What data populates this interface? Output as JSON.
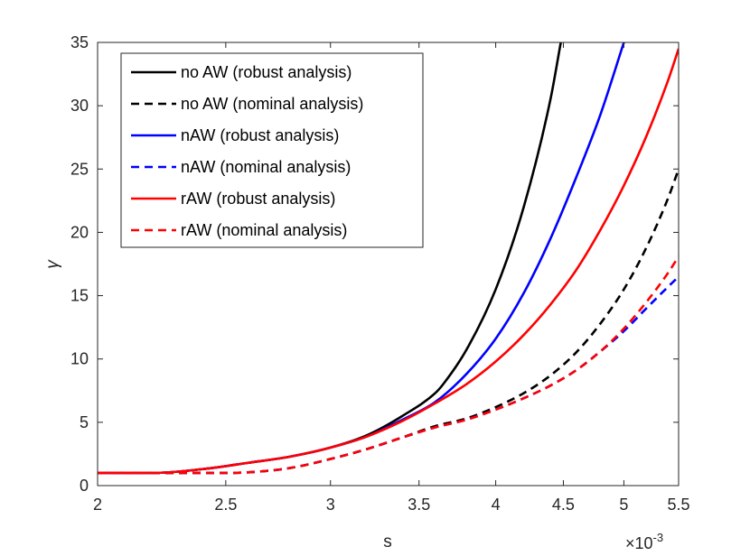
{
  "chart_data": {
    "type": "line",
    "title": "",
    "xlabel": "s",
    "ylabel": "γ",
    "x_scale": "log",
    "x_multiplier_label": "×10",
    "x_multiplier_exponent": "-3",
    "xlim": [
      2,
      5.5
    ],
    "ylim": [
      0,
      35
    ],
    "xticks": [
      2,
      2.5,
      3,
      3.5,
      4,
      4.5,
      5,
      5.5
    ],
    "xtick_labels": [
      "2",
      "2.5",
      "3",
      "3.5",
      "4",
      "4.5",
      "5",
      "5.5"
    ],
    "yticks": [
      0,
      5,
      10,
      15,
      20,
      25,
      30,
      35
    ],
    "ytick_labels": [
      "0",
      "5",
      "10",
      "15",
      "20",
      "25",
      "30",
      "35"
    ],
    "grid": false,
    "legend_position": "top-left",
    "series": [
      {
        "name": "no AW (robust analysis)",
        "color": "#000000",
        "style": "solid",
        "x": [
          2,
          2.2,
          2.4,
          2.6,
          2.8,
          3,
          3.2,
          3.4,
          3.6,
          3.65,
          3.8,
          4,
          4.2,
          4.4,
          4.48
        ],
        "y": [
          1,
          1,
          1.3,
          1.8,
          2.3,
          3,
          4,
          5.5,
          7.3,
          8,
          10.7,
          15.5,
          22,
          30.5,
          35
        ]
      },
      {
        "name": "no AW (nominal analysis)",
        "color": "#000000",
        "style": "dashed",
        "x": [
          2,
          2.2,
          2.4,
          2.6,
          2.8,
          3,
          3.2,
          3.4,
          3.6,
          3.8,
          4,
          4.2,
          4.4,
          4.6,
          4.8,
          5,
          5.2,
          5.4,
          5.5
        ],
        "y": [
          1,
          1,
          1,
          1.05,
          1.4,
          2.1,
          2.9,
          3.8,
          4.7,
          5.3,
          6.2,
          7.3,
          8.7,
          10.5,
          12.8,
          15.5,
          18.8,
          22.7,
          25
        ]
      },
      {
        "name": "nAW (robust analysis)",
        "color": "#0000ff",
        "style": "solid",
        "x": [
          2,
          2.2,
          2.4,
          2.6,
          2.8,
          3,
          3.2,
          3.4,
          3.6,
          3.8,
          4,
          4.2,
          4.4,
          4.6,
          4.8,
          5
        ],
        "y": [
          1,
          1,
          1.3,
          1.8,
          2.3,
          3,
          3.9,
          5.2,
          6.6,
          8.8,
          11.6,
          15.2,
          19.5,
          24.3,
          29.3,
          35
        ]
      },
      {
        "name": "nAW (nominal analysis)",
        "color": "#0000ff",
        "style": "dashed",
        "x": [
          2,
          2.2,
          2.4,
          2.6,
          2.8,
          3,
          3.2,
          3.4,
          3.6,
          3.8,
          4,
          4.2,
          4.4,
          4.6,
          4.8,
          5,
          5.2,
          5.4,
          5.5
        ],
        "y": [
          1,
          1,
          1,
          1.05,
          1.4,
          2.1,
          2.9,
          3.8,
          4.6,
          5.2,
          6,
          6.9,
          7.9,
          9.1,
          10.6,
          12.2,
          14,
          15.7,
          16.5
        ]
      },
      {
        "name": "rAW (robust analysis)",
        "color": "#ff0000",
        "style": "solid",
        "x": [
          2,
          2.2,
          2.4,
          2.6,
          2.8,
          3,
          3.2,
          3.4,
          3.6,
          3.8,
          4,
          4.2,
          4.4,
          4.6,
          4.8,
          5,
          5.2,
          5.4,
          5.5
        ],
        "y": [
          1,
          1,
          1.3,
          1.8,
          2.3,
          3,
          3.9,
          5.1,
          6.5,
          8,
          9.8,
          11.9,
          14.3,
          17,
          20.2,
          23.7,
          27.6,
          32,
          34.5
        ]
      },
      {
        "name": "rAW (nominal analysis)",
        "color": "#ff0000",
        "style": "dashed",
        "x": [
          2,
          2.2,
          2.4,
          2.6,
          2.8,
          3,
          3.2,
          3.4,
          3.6,
          3.8,
          4,
          4.2,
          4.4,
          4.6,
          4.8,
          5,
          5.2,
          5.4,
          5.5
        ],
        "y": [
          1,
          1,
          1,
          1.05,
          1.4,
          2.1,
          2.9,
          3.8,
          4.6,
          5.2,
          6,
          6.9,
          7.9,
          9.1,
          10.6,
          12.4,
          14.5,
          16.8,
          18.1
        ]
      }
    ]
  }
}
